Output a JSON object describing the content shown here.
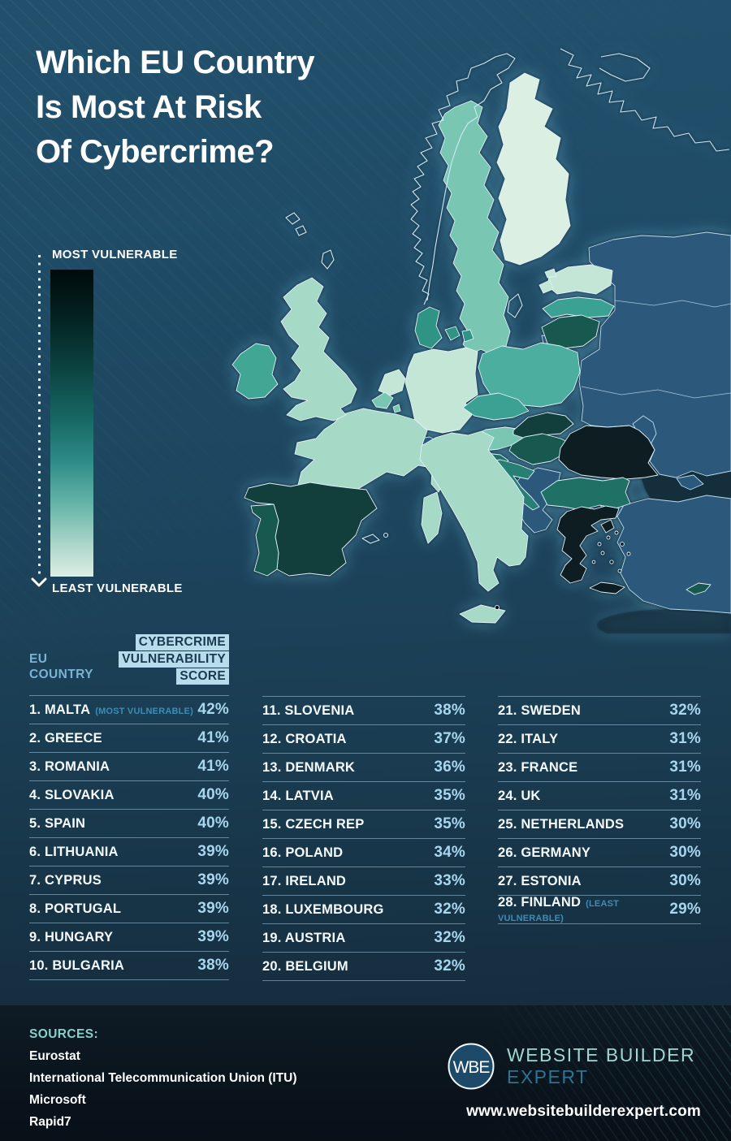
{
  "title": {
    "lines": [
      "Which EU Country",
      "Is Most At Risk",
      "Of Cybercrime?"
    ]
  },
  "legend": {
    "most_label": "MOST VULNERABLE",
    "least_label": "LEAST VULNERABLE",
    "gradient_top": "#010b0c",
    "gradient_mid": "#2d8a84",
    "gradient_bottom": "#ddeee6"
  },
  "table": {
    "col_header_left": [
      "EU",
      "COUNTRY"
    ],
    "col_header_right": [
      "CYBERCRIME",
      "VULNERABILITY",
      "SCORE"
    ],
    "columns": [
      [
        {
          "rank": 1,
          "name": "MALTA",
          "tag": "(MOST VULNERABLE)",
          "score": "42%"
        },
        {
          "rank": 2,
          "name": "GREECE",
          "score": "41%"
        },
        {
          "rank": 3,
          "name": "ROMANIA",
          "score": "41%"
        },
        {
          "rank": 4,
          "name": "SLOVAKIA",
          "score": "40%"
        },
        {
          "rank": 5,
          "name": "SPAIN",
          "score": "40%"
        },
        {
          "rank": 6,
          "name": "LITHUANIA",
          "score": "39%"
        },
        {
          "rank": 7,
          "name": "CYPRUS",
          "score": "39%"
        },
        {
          "rank": 8,
          "name": "PORTUGAL",
          "score": "39%"
        },
        {
          "rank": 9,
          "name": "HUNGARY",
          "score": "39%"
        },
        {
          "rank": 10,
          "name": "BULGARIA",
          "score": "38%"
        }
      ],
      [
        {
          "rank": 11,
          "name": "SLOVENIA",
          "score": "38%"
        },
        {
          "rank": 12,
          "name": "CROATIA",
          "score": "37%"
        },
        {
          "rank": 13,
          "name": "DENMARK",
          "score": "36%"
        },
        {
          "rank": 14,
          "name": "LATVIA",
          "score": "35%"
        },
        {
          "rank": 15,
          "name": "CZECH REP",
          "score": "35%"
        },
        {
          "rank": 16,
          "name": "POLAND",
          "score": "34%"
        },
        {
          "rank": 17,
          "name": "IRELAND",
          "score": "33%"
        },
        {
          "rank": 18,
          "name": "LUXEMBOURG",
          "score": "32%"
        },
        {
          "rank": 19,
          "name": "AUSTRIA",
          "score": "32%"
        },
        {
          "rank": 20,
          "name": "BELGIUM",
          "score": "32%"
        }
      ],
      [
        {
          "rank": 21,
          "name": "SWEDEN",
          "score": "32%"
        },
        {
          "rank": 22,
          "name": "ITALY",
          "score": "31%"
        },
        {
          "rank": 23,
          "name": "FRANCE",
          "score": "31%"
        },
        {
          "rank": 24,
          "name": "UK",
          "score": "31%"
        },
        {
          "rank": 25,
          "name": "NETHERLANDS",
          "score": "30%"
        },
        {
          "rank": 26,
          "name": "GERMANY",
          "score": "30%"
        },
        {
          "rank": 27,
          "name": "ESTONIA",
          "score": "30%"
        },
        {
          "rank": 28,
          "name": "FINLAND",
          "tag": "(LEAST VULNERABLE)",
          "score": "29%"
        }
      ]
    ]
  },
  "footer": {
    "sources_label": "SOURCES:",
    "sources": [
      "Eurostat",
      "International Telecommunication Union (ITU)",
      "Microsoft",
      "Rapid7"
    ],
    "logo_monogram": "WBE",
    "brand_line1": "WEBSITE BUILDER",
    "brand_line2": "EXPERT",
    "url": "www.websitebuilderexpert.com"
  },
  "map": {
    "non_eu_color": "#2c587b",
    "outline_color": "#d6edf8",
    "sea_shadow_color": "#142e3c",
    "country_colors": {
      "malta": "#0a0f10",
      "greece": "#0d1d22",
      "romania": "#0d1d22",
      "slovakia": "#123e3c",
      "spain": "#123e3c",
      "lithuania": "#17594f",
      "cyprus": "#17594f",
      "portugal": "#17594f",
      "hungary": "#17594f",
      "bulgaria": "#1e7164",
      "slovenia": "#1e7164",
      "croatia": "#278073",
      "denmark": "#2f9484",
      "latvia": "#3ba192",
      "czech": "#3ba192",
      "poland": "#4bae9e",
      "ireland": "#42a694",
      "luxembourg": "#79c6b2",
      "austria": "#79c6b2",
      "belgium": "#79c6b2",
      "sweden": "#79c6b2",
      "italy": "#a6d9c6",
      "france": "#a6d9c6",
      "uk": "#a6d9c6",
      "netherlands": "#c4e6d6",
      "germany": "#c4e6d6",
      "estonia": "#c4e6d6",
      "finland": "#dcefe3"
    }
  },
  "chart_data": {
    "type": "heatmap",
    "subtype": "choropleth map of Europe + ranked table",
    "title": "Which EU Country Is Most At Risk Of Cybercrime?",
    "metric": "Cybercrime Vulnerability Score",
    "legend": {
      "high": "MOST VULNERABLE",
      "low": "LEAST VULNERABLE"
    },
    "categories": [
      "Malta",
      "Greece",
      "Romania",
      "Slovakia",
      "Spain",
      "Lithuania",
      "Cyprus",
      "Portugal",
      "Hungary",
      "Bulgaria",
      "Slovenia",
      "Croatia",
      "Denmark",
      "Latvia",
      "Czech Rep",
      "Poland",
      "Ireland",
      "Luxembourg",
      "Austria",
      "Belgium",
      "Sweden",
      "Italy",
      "France",
      "UK",
      "Netherlands",
      "Germany",
      "Estonia",
      "Finland"
    ],
    "values": [
      42,
      41,
      41,
      40,
      40,
      39,
      39,
      39,
      39,
      38,
      38,
      37,
      36,
      35,
      35,
      34,
      33,
      32,
      32,
      32,
      32,
      31,
      31,
      31,
      30,
      30,
      30,
      29
    ],
    "annotations": [
      "Malta is most vulnerable (42%)",
      "Finland is least vulnerable (29%)"
    ]
  }
}
